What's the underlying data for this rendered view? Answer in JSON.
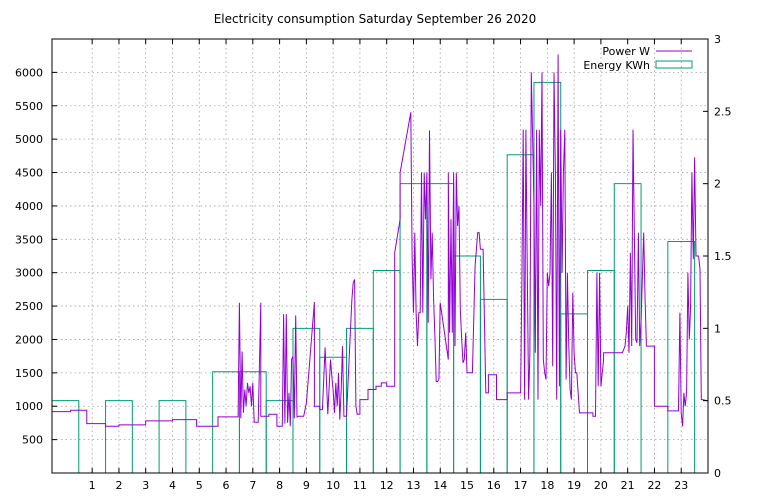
{
  "chart_data": {
    "type": "bar",
    "title": "Electricity consumption Saturday September 26 2020",
    "xlabel": "",
    "ylabel": "",
    "grid": true,
    "legend_position": "top-right",
    "x_range": [
      -0.5,
      24.0
    ],
    "x_ticks": [
      1,
      2,
      3,
      4,
      5,
      6,
      7,
      8,
      9,
      10,
      11,
      12,
      13,
      14,
      15,
      16,
      17,
      18,
      19,
      20,
      21,
      22,
      23
    ],
    "y_left": {
      "range": [
        0,
        6500
      ],
      "ticks": [
        500,
        1000,
        1500,
        2000,
        2500,
        3000,
        3500,
        4000,
        4500,
        5000,
        5500,
        6000
      ]
    },
    "y_right": {
      "range": [
        0,
        3
      ],
      "ticks": [
        0,
        0.5,
        1,
        1.5,
        2,
        2.5,
        3
      ]
    },
    "colors": {
      "power": "#9400d3",
      "energy": "#009e73"
    },
    "series": [
      {
        "name": "Power W",
        "axis": "left",
        "style": "line",
        "x": [
          -0.5,
          0.2,
          0.2,
          0.8,
          0.8,
          1.5,
          1.5,
          2.0,
          2.0,
          3.0,
          3.0,
          4.0,
          4.0,
          4.9,
          4.9,
          5.7,
          5.7,
          6.45,
          6.5,
          6.55,
          6.6,
          6.65,
          6.7,
          6.75,
          6.8,
          6.85,
          6.9,
          6.95,
          7.0,
          7.05,
          7.1,
          7.15,
          7.2,
          7.3,
          7.3,
          7.6,
          7.6,
          7.9,
          7.9,
          8.1,
          8.15,
          8.2,
          8.25,
          8.3,
          8.35,
          8.4,
          8.45,
          8.5,
          8.55,
          8.6,
          8.65,
          8.7,
          8.75,
          8.8,
          8.85,
          8.9,
          9.0,
          9.0,
          9.3,
          9.3,
          9.5,
          9.5,
          9.6,
          9.7,
          9.8,
          9.9,
          9.95,
          10.0,
          10.05,
          10.1,
          10.15,
          10.2,
          10.25,
          10.3,
          10.35,
          10.4,
          10.5,
          10.5,
          10.7,
          10.75,
          10.8,
          10.85,
          10.9,
          11.0,
          11.0,
          11.3,
          11.3,
          11.6,
          11.6,
          11.8,
          11.8,
          12.0,
          12.0,
          12.3,
          12.3,
          12.5,
          12.5,
          12.9,
          12.95,
          13.0,
          13.05,
          13.1,
          13.15,
          13.2,
          13.25,
          13.3,
          13.35,
          13.4,
          13.45,
          13.5,
          13.55,
          13.6,
          13.65,
          13.7,
          13.75,
          13.8,
          13.85,
          13.9,
          13.95,
          14.0,
          14.3,
          14.3,
          14.35,
          14.4,
          14.45,
          14.5,
          14.55,
          14.6,
          14.65,
          14.7,
          14.75,
          14.8,
          14.85,
          14.9,
          14.95,
          15.0,
          15.1,
          15.2,
          15.3,
          15.4,
          15.45,
          15.5,
          15.6,
          15.7,
          15.8,
          15.8,
          16.1,
          16.1,
          16.5,
          16.5,
          16.8,
          16.8,
          17.0,
          17.05,
          17.1,
          17.15,
          17.2,
          17.25,
          17.3,
          17.35,
          17.4,
          17.5,
          17.55,
          17.6,
          17.65,
          17.7,
          17.75,
          17.8,
          17.85,
          17.9,
          17.95,
          18.0,
          18.05,
          18.1,
          18.15,
          18.2,
          18.25,
          18.3,
          18.35,
          18.4,
          18.45,
          18.5,
          18.55,
          18.6,
          18.65,
          18.7,
          18.75,
          18.8,
          18.85,
          18.9,
          18.95,
          19.0,
          19.05,
          19.1,
          19.2,
          19.2,
          19.7,
          19.7,
          19.8,
          19.85,
          19.9,
          19.95,
          20.0,
          20.1,
          20.1,
          20.8,
          20.85,
          20.9,
          20.95,
          21.0,
          21.05,
          21.1,
          21.15,
          21.2,
          21.3,
          21.35,
          21.4,
          21.45,
          21.5,
          21.6,
          21.65,
          21.7,
          21.8,
          21.8,
          22.0,
          22.0,
          22.5,
          22.5,
          22.9,
          22.95,
          23.0,
          23.05,
          23.1,
          23.15,
          23.2,
          23.25,
          23.3,
          23.35,
          23.4,
          23.45,
          23.5,
          23.55,
          23.6,
          23.65,
          23.7,
          23.75,
          23.8,
          24.0
        ],
        "values": [
          920,
          920,
          940,
          940,
          740,
          740,
          700,
          700,
          720,
          720,
          780,
          780,
          800,
          800,
          700,
          700,
          840,
          840,
          2550,
          820,
          1820,
          900,
          1250,
          1000,
          1350,
          1200,
          1300,
          1000,
          1350,
          760,
          760,
          760,
          760,
          2550,
          850,
          850,
          880,
          880,
          700,
          700,
          2380,
          740,
          2380,
          750,
          1200,
          700,
          1700,
          1750,
          820,
          2360,
          840,
          850,
          850,
          850,
          850,
          850,
          1050,
          1050,
          2560,
          1000,
          1000,
          950,
          950,
          1880,
          880,
          1700,
          1450,
          1250,
          900,
          1350,
          1000,
          1500,
          800,
          1250,
          1900,
          850,
          850,
          850,
          2600,
          2850,
          2900,
          1000,
          880,
          880,
          1100,
          1100,
          1250,
          1250,
          1300,
          1300,
          1350,
          1350,
          1300,
          1300,
          3300,
          3800,
          4500,
          5400,
          3250,
          2400,
          3600,
          2400,
          1900,
          2400,
          2400,
          4500,
          2400,
          4500,
          3800,
          4500,
          2250,
          5130,
          2900,
          3600,
          2600,
          2050,
          1370,
          1370,
          1400,
          2550,
          1700,
          4500,
          2100,
          3800,
          2100,
          4500,
          1900,
          4500,
          3700,
          4000,
          2450,
          2000,
          1650,
          1700,
          2100,
          1500,
          1500,
          1500,
          3100,
          3600,
          3600,
          3350,
          3350,
          1200,
          1200,
          1470,
          1470,
          1100,
          1100,
          1200,
          1200,
          1200,
          1200,
          2900,
          5140,
          1100,
          5140,
          3000,
          1100,
          1800,
          6000,
          4000,
          1800,
          5140,
          1100,
          5140,
          4000,
          6000,
          1700,
          1500,
          1400,
          3000,
          2800,
          3000,
          4500,
          1600,
          6000,
          4500,
          1100,
          6270,
          1300,
          5140,
          3000,
          4500,
          5140,
          1400,
          3000,
          1900,
          1250,
          1100,
          2700,
          1800,
          1500,
          1500,
          900,
          900,
          900,
          850,
          850,
          3000,
          1300,
          3000,
          1300,
          1700,
          1800,
          1800,
          1850,
          1900,
          2100,
          2500,
          1800,
          3300,
          1900,
          5140,
          2000,
          1950,
          3600,
          1900,
          2300,
          3600,
          2600,
          1900,
          1900,
          1900,
          1900,
          1000,
          1000,
          930,
          930,
          2400,
          900,
          700,
          1200,
          1000,
          1200,
          3000,
          2000,
          2500,
          4500,
          3200,
          4730,
          3250,
          3250,
          3250,
          3050,
          1100,
          1100,
          1080
        ]
      },
      {
        "name": "Energy KWh",
        "axis": "right",
        "style": "steps",
        "categories": [
          0,
          1,
          2,
          3,
          4,
          5,
          6,
          7,
          8,
          9,
          10,
          11,
          12,
          13,
          14,
          15,
          16,
          17,
          18,
          19,
          20,
          21,
          22,
          23
        ],
        "values": [
          0.5,
          0.0,
          0.5,
          0.0,
          0.5,
          0.0,
          0.7,
          0.7,
          0.5,
          1.0,
          0.8,
          1.0,
          1.4,
          2.0,
          2.0,
          1.5,
          1.2,
          2.2,
          2.7,
          1.1,
          1.4,
          2.0,
          0.0,
          1.6
        ]
      }
    ]
  }
}
